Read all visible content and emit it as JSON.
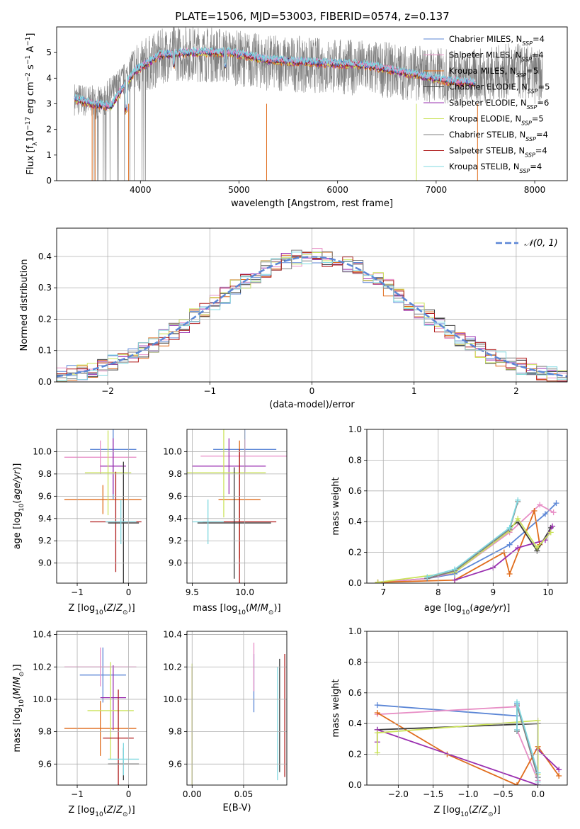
{
  "colors": {
    "series": [
      "#5b86d6",
      "#e88fc6",
      "#e06c1b",
      "#3c3c3c",
      "#9a2fb0",
      "#cbe35b",
      "#808080",
      "#b01e1e",
      "#7fd8e0"
    ],
    "grid": "#b0b0b0"
  },
  "chart_data": [
    {
      "id": "spectrum",
      "type": "line",
      "title": "PLATE=1506, MJD=53003, FIBERID=0574, z=0.137",
      "xlabel": "wavelength [Angstrom, rest frame]",
      "ylabel": "Flux [f_λ10^-17 erg cm^-2 s^-1 A^-1]",
      "xlim": [
        3150,
        8330
      ],
      "ylim": [
        0,
        6
      ],
      "xticks": [
        "4000",
        "5000",
        "6000",
        "7000",
        "8000"
      ],
      "yticks": [
        "0",
        "1",
        "2",
        "3",
        "4",
        "5"
      ],
      "grid": false,
      "legend_position": "right",
      "legend": [
        {
          "name": "Chabrier MILES, N",
          "sub": "SSP",
          "val": "=4"
        },
        {
          "name": "Salpeter MILES, N",
          "sub": "SSP",
          "val": "=4"
        },
        {
          "name": "Kroupa MILES, N",
          "sub": "SSP",
          "val": "=5"
        },
        {
          "name": "Chabrier ELODIE, N",
          "sub": "SSP",
          "val": "=5"
        },
        {
          "name": "Salpeter ELODIE, N",
          "sub": "SSP",
          "val": "=6"
        },
        {
          "name": "Kroupa ELODIE, N",
          "sub": "SSP",
          "val": "=5"
        },
        {
          "name": "Chabrier STELIB, N",
          "sub": "SSP",
          "val": "=4"
        },
        {
          "name": "Salpeter STELIB, N",
          "sub": "SSP",
          "val": "=4"
        },
        {
          "name": "Kroupa STELIB, N",
          "sub": "SSP",
          "val": "=4"
        }
      ],
      "continuum": [
        [
          3330,
          3.2
        ],
        [
          3500,
          3.0
        ],
        [
          3700,
          2.9
        ],
        [
          3800,
          3.5
        ],
        [
          3950,
          4.3
        ],
        [
          4200,
          4.9
        ],
        [
          4500,
          5.0
        ],
        [
          4900,
          5.0
        ],
        [
          5300,
          4.7
        ],
        [
          5800,
          4.6
        ],
        [
          6300,
          4.5
        ],
        [
          6700,
          4.2
        ],
        [
          7100,
          3.9
        ],
        [
          7400,
          3.8
        ]
      ],
      "noisy_continuum": [
        [
          3330,
          3.2
        ],
        [
          3600,
          3.0
        ],
        [
          3900,
          4.2
        ],
        [
          4300,
          5.0
        ],
        [
          4800,
          4.9
        ],
        [
          5300,
          4.6
        ],
        [
          5800,
          4.5
        ],
        [
          6300,
          4.4
        ],
        [
          6800,
          4.2
        ],
        [
          7300,
          4.0
        ],
        [
          7800,
          4.3
        ],
        [
          8080,
          4.0
        ]
      ]
    },
    {
      "id": "residuals",
      "type": "step",
      "xlabel": "(data-model)/error",
      "ylabel": "Normed distribution",
      "xlim": [
        -2.5,
        2.5
      ],
      "ylim": [
        0,
        0.49
      ],
      "xticks": [
        "-2",
        "-1",
        "0",
        "1",
        "2"
      ],
      "yticks": [
        "0.0",
        "0.1",
        "0.2",
        "0.3",
        "0.4"
      ],
      "grid": true,
      "legend_position": "top-right",
      "legend_label": "𝒩(0, 1)",
      "bin_width": 0.1
    },
    {
      "id": "age-vs-Z",
      "type": "errorbar",
      "xlabel": "Z [log10(Z/Z⊙)]",
      "ylabel": "age [log10(age/yr)]",
      "xlim": [
        -1.4,
        0.35
      ],
      "ylim": [
        8.82,
        10.2
      ],
      "xticks": [
        "-1",
        "0"
      ],
      "yticks": [
        "9.0",
        "9.2",
        "9.4",
        "9.6",
        "9.8",
        "10.0"
      ],
      "grid": true,
      "points": [
        {
          "s": 0,
          "x": -0.3,
          "xe": 0.45,
          "y": 10.02,
          "ye": 0.45
        },
        {
          "s": 1,
          "x": -0.55,
          "xe": 0.7,
          "y": 9.95,
          "ye": 0.15
        },
        {
          "s": 2,
          "x": -0.5,
          "xe": 0.75,
          "y": 9.57,
          "ye": 0.13
        },
        {
          "s": 4,
          "x": -0.3,
          "xe": 0.25,
          "y": 9.87,
          "ye": 0.25
        },
        {
          "s": 5,
          "x": -0.4,
          "xe": 0.45,
          "y": 9.81,
          "ye": 0.38
        },
        {
          "s": 7,
          "x": -0.25,
          "xe": 0.5,
          "y": 9.37,
          "ye": 0.45
        },
        {
          "s": 3,
          "x": -0.1,
          "xe": 0.3,
          "y": 9.36,
          "ye": 0.55
        },
        {
          "s": 8,
          "x": -0.15,
          "xe": 0.3,
          "y": 9.37,
          "ye": 0.2
        }
      ]
    },
    {
      "id": "age-vs-mass",
      "type": "errorbar",
      "xlabel": "mass [log10(M/M⊙)]",
      "ylabel": "",
      "xlim": [
        9.45,
        10.4
      ],
      "ylim": [
        8.82,
        10.2
      ],
      "xticks": [
        "9.5",
        "10.0"
      ],
      "yticks": [
        "9.0",
        "9.2",
        "9.4",
        "9.6",
        "9.8",
        "10.0"
      ],
      "grid": true,
      "points": [
        {
          "s": 0,
          "x": 10.0,
          "xe": 0.3,
          "y": 10.02,
          "ye": 0.2
        },
        {
          "s": 1,
          "x": 10.0,
          "xe": 0.42,
          "y": 9.96,
          "ye": 0.15
        },
        {
          "s": 2,
          "x": 9.95,
          "xe": 0.2,
          "y": 9.57,
          "ye": 0.53
        },
        {
          "s": 4,
          "x": 9.85,
          "xe": 0.35,
          "y": 9.87,
          "ye": 0.25
        },
        {
          "s": 5,
          "x": 9.8,
          "xe": 0.4,
          "y": 9.81,
          "ye": 0.4
        },
        {
          "s": 7,
          "x": 9.95,
          "xe": 0.35,
          "y": 9.37,
          "ye": 0.65
        },
        {
          "s": 3,
          "x": 9.9,
          "xe": 0.35,
          "y": 9.36,
          "ye": 0.5
        },
        {
          "s": 8,
          "x": 9.65,
          "xe": 0.15,
          "y": 9.37,
          "ye": 0.2
        }
      ]
    },
    {
      "id": "mass-weight-vs-age",
      "type": "line",
      "xlabel": "age [log10(age/yr)]",
      "ylabel": "mass weight",
      "xlim": [
        6.7,
        10.35
      ],
      "ylim": [
        0,
        1.0
      ],
      "xticks": [
        "7",
        "8",
        "9",
        "10"
      ],
      "yticks": [
        "0.0",
        "0.2",
        "0.4",
        "0.6",
        "0.8",
        "1.0"
      ],
      "grid": true,
      "series": [
        {
          "s": 0,
          "x": [
            6.9,
            7.8,
            8.3,
            9.3,
            9.95,
            10.15
          ],
          "y": [
            0.005,
            0.03,
            0.06,
            0.25,
            0.45,
            0.52
          ]
        },
        {
          "s": 1,
          "x": [
            6.9,
            7.8,
            8.3,
            9.3,
            9.85,
            10.1
          ],
          "y": [
            0.005,
            0.03,
            0.07,
            0.33,
            0.51,
            0.46
          ]
        },
        {
          "s": 2,
          "x": [
            6.9,
            8.3,
            9.2,
            9.3,
            9.75,
            9.85
          ],
          "y": [
            0.005,
            0.02,
            0.2,
            0.06,
            0.47,
            0.25
          ]
        },
        {
          "s": 3,
          "x": [
            7.8,
            8.3,
            9.45,
            9.8,
            10.05
          ],
          "y": [
            0.03,
            0.08,
            0.4,
            0.21,
            0.36
          ]
        },
        {
          "s": 4,
          "x": [
            8.3,
            9.0,
            9.45,
            9.95,
            10.08
          ],
          "y": [
            0.02,
            0.1,
            0.23,
            0.28,
            0.37
          ]
        },
        {
          "s": 5,
          "x": [
            6.9,
            8.3,
            9.3,
            9.45,
            9.8,
            10.05
          ],
          "y": [
            0.005,
            0.07,
            0.34,
            0.42,
            0.23,
            0.33
          ]
        },
        {
          "s": 6,
          "x": [
            7.8,
            8.3,
            9.3,
            9.45
          ],
          "y": [
            0.03,
            0.08,
            0.35,
            0.53
          ]
        },
        {
          "s": 8,
          "x": [
            7.8,
            8.3,
            9.3,
            9.45
          ],
          "y": [
            0.04,
            0.09,
            0.36,
            0.54
          ]
        }
      ]
    },
    {
      "id": "mass-vs-Z",
      "type": "errorbar",
      "xlabel": "Z [log10(Z/Z⊙)]",
      "ylabel": "mass [log10(M/M⊙)]",
      "xlim": [
        -1.4,
        0.35
      ],
      "ylim": [
        9.47,
        10.42
      ],
      "xticks": [
        "-1",
        "0"
      ],
      "yticks": [
        "9.6",
        "9.8",
        "10.0",
        "10.2",
        "10.4"
      ],
      "grid": true,
      "points": [
        {
          "s": 0,
          "x": -0.5,
          "xe": 0.45,
          "y": 10.15,
          "ye": 0.17
        },
        {
          "s": 1,
          "x": -0.55,
          "xe": 0.7,
          "y": 10.2,
          "ye": 0.12
        },
        {
          "s": 2,
          "x": -0.55,
          "xe": 0.7,
          "y": 9.82,
          "ye": 0.17
        },
        {
          "s": 4,
          "x": -0.3,
          "xe": 0.25,
          "y": 10.01,
          "ye": 0.2
        },
        {
          "s": 5,
          "x": -0.35,
          "xe": 0.45,
          "y": 9.93,
          "ye": 0.3
        },
        {
          "s": 7,
          "x": -0.2,
          "xe": 0.3,
          "y": 9.76,
          "ye": 0.3
        },
        {
          "s": 3,
          "x": -0.1,
          "xe": 0.3,
          "y": 9.6,
          "ye": 0.1
        },
        {
          "s": 8,
          "x": -0.1,
          "xe": 0.3,
          "y": 9.63,
          "ye": 0.1
        }
      ]
    },
    {
      "id": "mass-vs-EBV",
      "type": "errorbar",
      "xlabel": "E(B-V)",
      "ylabel": "",
      "xlim": [
        -0.005,
        0.092
      ],
      "ylim": [
        9.47,
        10.42
      ],
      "xticks": [
        "0.00",
        "0.05"
      ],
      "yticks": [
        "9.6",
        "9.8",
        "10.0",
        "10.2",
        "10.4"
      ],
      "grid": true,
      "points": [
        {
          "s": 0,
          "x": 0.06,
          "y": 10.1,
          "ye": 0.18
        },
        {
          "s": 1,
          "x": 0.06,
          "y": 10.2,
          "ye": 0.15
        },
        {
          "s": 2,
          "x": 0.0,
          "y": 9.95,
          "ye": 0.25
        },
        {
          "s": 4,
          "x": 0.0,
          "y": 9.75,
          "ye": 0.45
        },
        {
          "s": 5,
          "x": 0.0,
          "y": 9.82,
          "ye": 0.4
        },
        {
          "s": 3,
          "x": 0.085,
          "y": 9.9,
          "ye": 0.35
        },
        {
          "s": 7,
          "x": 0.09,
          "y": 9.9,
          "ye": 0.38
        },
        {
          "s": 8,
          "x": 0.083,
          "y": 9.85,
          "ye": 0.35
        }
      ]
    },
    {
      "id": "mass-weight-vs-Z",
      "type": "line",
      "xlabel": "Z [log10(Z/Z⊙)]",
      "ylabel": "mass weight",
      "xlim": [
        -2.45,
        0.42
      ],
      "ylim": [
        0,
        1.0
      ],
      "xticks": [
        "-2.0",
        "-1.5",
        "-1.0",
        "-0.5",
        "0.0"
      ],
      "yticks": [
        "0.0",
        "0.2",
        "0.4",
        "0.6",
        "0.8",
        "1.0"
      ],
      "grid": true,
      "series": [
        {
          "s": 0,
          "x": [
            -2.3,
            -0.3,
            -0.3,
            0.0
          ],
          "y": [
            0.52,
            0.45,
            0.53,
            0.05
          ]
        },
        {
          "s": 1,
          "x": [
            -2.3,
            -0.3,
            -0.3,
            0.0
          ],
          "y": [
            0.46,
            0.51,
            0.36,
            0.03
          ]
        },
        {
          "s": 2,
          "x": [
            -2.3,
            -1.3,
            -0.3,
            0.0,
            0.3
          ],
          "y": [
            0.47,
            0.2,
            0.0,
            0.25,
            0.06
          ]
        },
        {
          "s": 3,
          "x": [
            -2.3,
            0.0,
            0.0
          ],
          "y": [
            0.36,
            0.4,
            0.0
          ]
        },
        {
          "s": 4,
          "x": [
            -2.3,
            -2.3,
            0.0,
            0.0,
            0.3
          ],
          "y": [
            0.28,
            0.36,
            0.0,
            0.23,
            0.1
          ]
        },
        {
          "s": 5,
          "x": [
            -2.3,
            -2.3,
            0.0,
            0.0
          ],
          "y": [
            0.21,
            0.34,
            0.42,
            0.07
          ]
        },
        {
          "s": 6,
          "x": [
            -0.3,
            -0.3,
            0.0
          ],
          "y": [
            0.35,
            0.52,
            0.05
          ]
        },
        {
          "s": 8,
          "x": [
            -0.3,
            -0.3,
            0.0,
            0.0
          ],
          "y": [
            0.36,
            0.54,
            0.08,
            0.02
          ]
        }
      ]
    }
  ]
}
